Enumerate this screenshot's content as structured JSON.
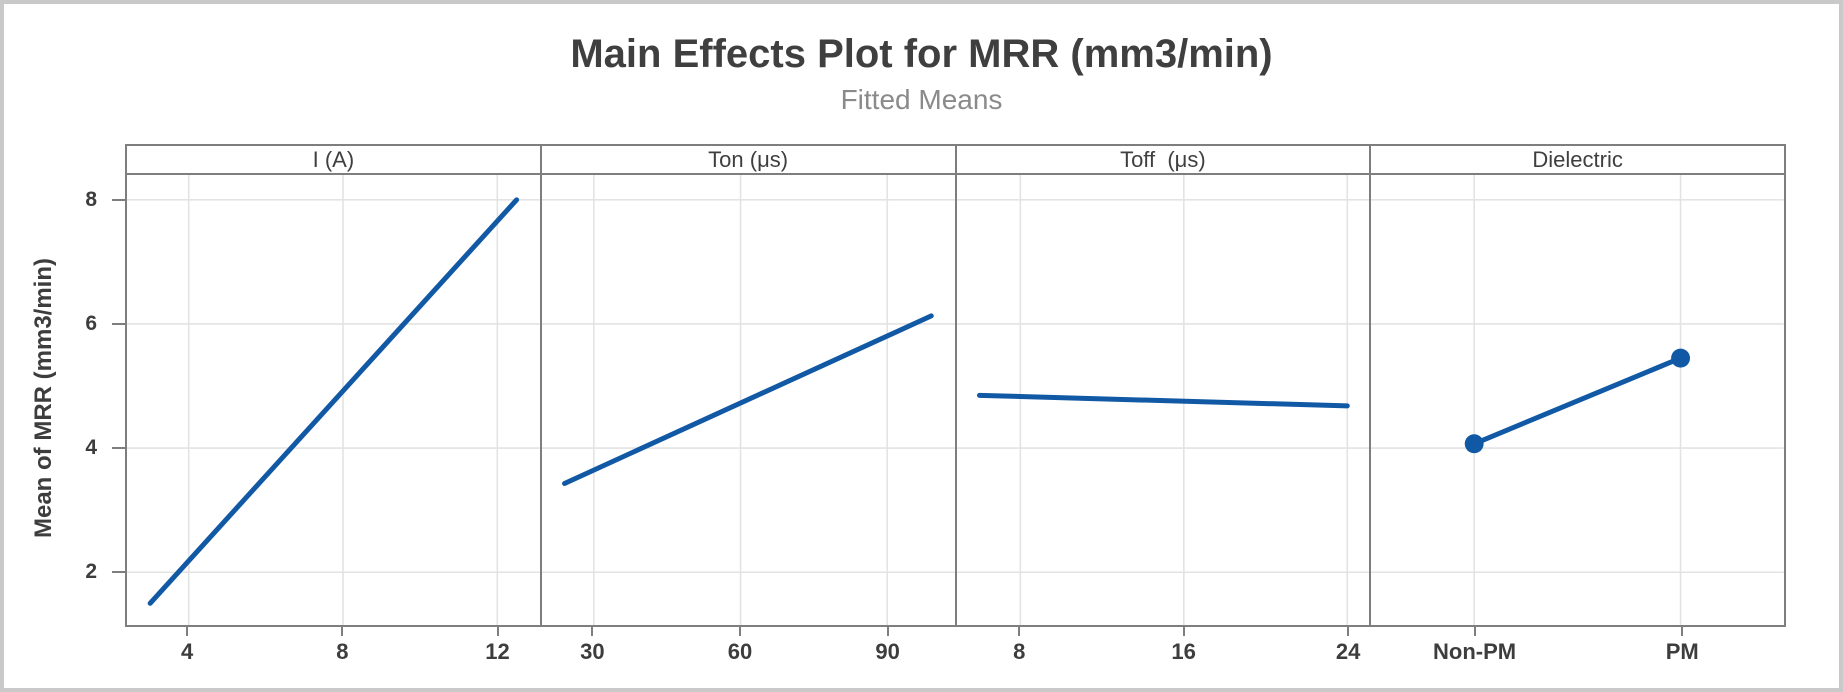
{
  "chart_data": {
    "type": "line",
    "title": "Main Effects Plot for MRR (mm3/min)",
    "subtitle": "Fitted Means",
    "ylabel": "Mean of MRR (mm3/min)",
    "yticks": [
      2,
      4,
      6,
      8
    ],
    "ylim": [
      1.15,
      8.4
    ],
    "grid": true,
    "legend": "none",
    "panels": [
      {
        "label": "I (A)",
        "xticks": [
          4,
          8,
          12
        ],
        "xlim": [
          2.4,
          13.1
        ],
        "x": [
          3,
          12.5
        ],
        "y": [
          1.5,
          8.0
        ],
        "markers": false
      },
      {
        "label": "Ton (μs)",
        "xticks": [
          30,
          60,
          90
        ],
        "xlim": [
          19.4,
          103.8
        ],
        "x": [
          24,
          99
        ],
        "y": [
          3.43,
          6.13
        ],
        "markers": false
      },
      {
        "label": "Toff  (μs)",
        "xticks": [
          8,
          16,
          24
        ],
        "xlim": [
          4.9,
          25.1
        ],
        "x": [
          6,
          24
        ],
        "y": [
          4.85,
          4.68
        ],
        "markers": false
      },
      {
        "label": "Dielectric",
        "categories": [
          "Non-PM",
          "PM"
        ],
        "positions": [
          0.25,
          0.75
        ],
        "y": [
          4.07,
          5.45
        ],
        "markers": true
      }
    ]
  },
  "colors": {
    "line": "#1159A5",
    "grid": "#e3e3e3",
    "panel_border": "#7e7e7e",
    "tick": "#7e7e7e",
    "title_text": "#3f3f3f",
    "subtitle_text": "#8a8a8a",
    "axis_text": "#3d3d3d",
    "figure_border": "#c9c9c9"
  }
}
